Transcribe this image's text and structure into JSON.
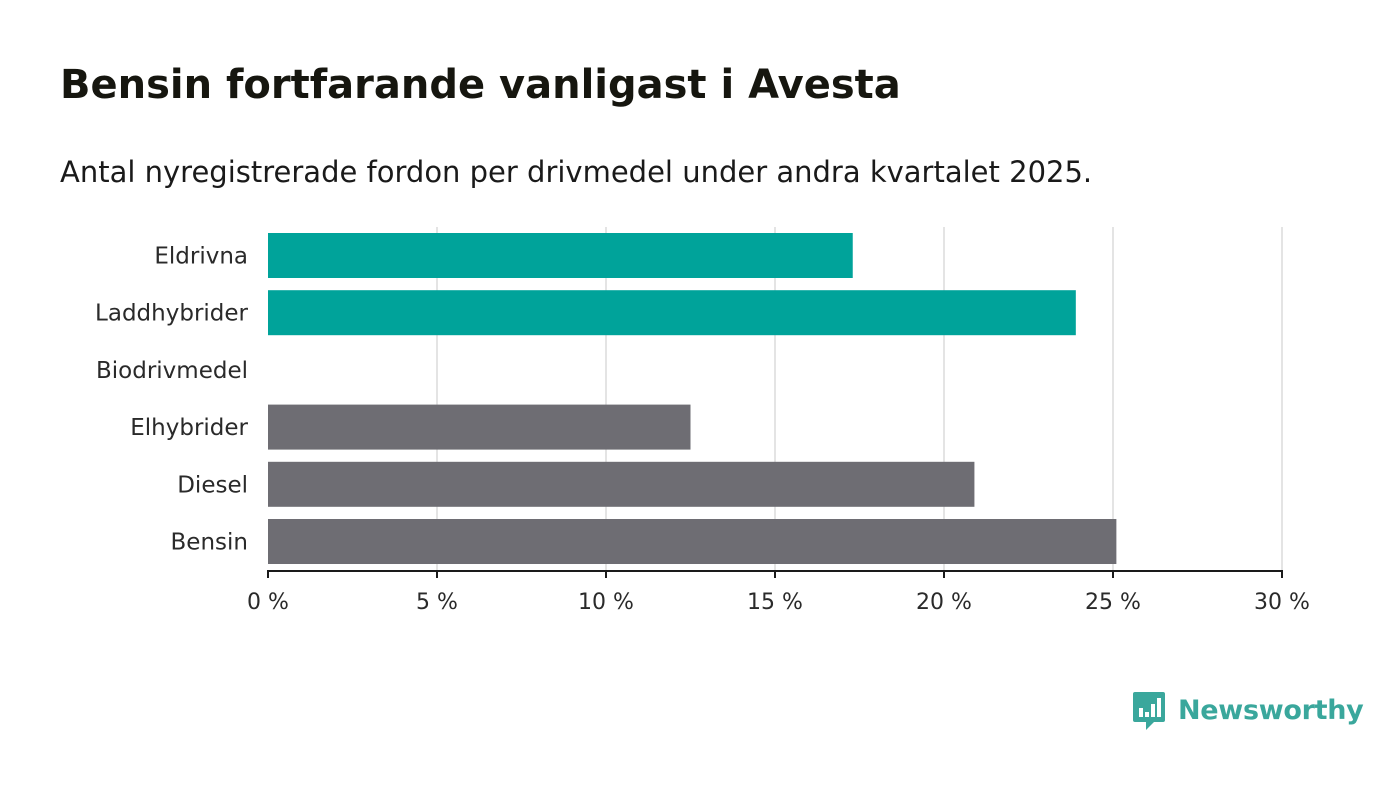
{
  "header": {
    "title": "Bensin fortfarande vanligast i Avesta",
    "subtitle": "Antal nyregistrerade fordon per drivmedel under andra kvartalet 2025."
  },
  "brand": {
    "name": "Newsworthy",
    "icon": "newsworthy-logo-icon",
    "color": "#3aa79c"
  },
  "chart_data": {
    "type": "bar",
    "orientation": "horizontal",
    "categories": [
      "Eldrivna",
      "Laddhybrider",
      "Biodrivmedel",
      "Elhybrider",
      "Diesel",
      "Bensin"
    ],
    "values": [
      17.3,
      23.9,
      0,
      12.5,
      20.9,
      25.1
    ],
    "colors": [
      "#00a39a",
      "#00a39a",
      "#00a39a",
      "#6e6d73",
      "#6e6d73",
      "#6e6d73"
    ],
    "xlim": [
      0,
      30
    ],
    "xticks": [
      0,
      5,
      10,
      15,
      20,
      25,
      30
    ],
    "tick_labels": [
      "0 %",
      "5 %",
      "10 %",
      "15 %",
      "20 %",
      "25 %",
      "30 %"
    ],
    "unit": "%",
    "grid": true,
    "xlabel": "",
    "ylabel": ""
  }
}
